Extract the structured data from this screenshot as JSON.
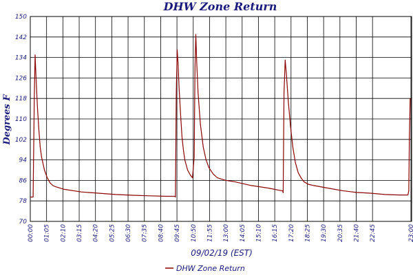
{
  "chart_data": {
    "type": "line",
    "title": "DHW Zone Return",
    "xlabel": "09/02/19 (EST)",
    "ylabel": "Degrees F",
    "ylim": [
      70,
      150
    ],
    "yticks": [
      "70",
      "78",
      "86",
      "94",
      "102",
      "110",
      "118",
      "126",
      "134",
      "142",
      "150"
    ],
    "xticks": [
      "00:00",
      "01:05",
      "02:10",
      "03:15",
      "04:20",
      "05:25",
      "06:30",
      "07:35",
      "08:40",
      "09:45",
      "10:50",
      "11:55",
      "13:00",
      "14:05",
      "15:10",
      "16:15",
      "17:20",
      "18:25",
      "19:30",
      "20:35",
      "21:40",
      "22:45",
      "23:00"
    ],
    "grid": true,
    "legend_position": "bottom-center",
    "series": [
      {
        "name": "DHW Zone Return",
        "color": "#8b0000",
        "points": [
          [
            0,
            79.5
          ],
          [
            10,
            79.5
          ],
          [
            14,
            118
          ],
          [
            17,
            135
          ],
          [
            20,
            127
          ],
          [
            25,
            115
          ],
          [
            30,
            106
          ],
          [
            35,
            99
          ],
          [
            40,
            95
          ],
          [
            50,
            90
          ],
          [
            60,
            87
          ],
          [
            70,
            85
          ],
          [
            80,
            84
          ],
          [
            90,
            83.5
          ],
          [
            120,
            82.5
          ],
          [
            180,
            81.5
          ],
          [
            240,
            81
          ],
          [
            300,
            80.5
          ],
          [
            360,
            80.2
          ],
          [
            420,
            80
          ],
          [
            480,
            79.8
          ],
          [
            510,
            79.8
          ],
          [
            512,
            79.5
          ],
          [
            515,
            120
          ],
          [
            518,
            137
          ],
          [
            521,
            132
          ],
          [
            525,
            122
          ],
          [
            530,
            112
          ],
          [
            535,
            103
          ],
          [
            540,
            98
          ],
          [
            545,
            94
          ],
          [
            555,
            90
          ],
          [
            565,
            88
          ],
          [
            572,
            87
          ],
          [
            578,
            95
          ],
          [
            581,
            130
          ],
          [
            584,
            143
          ],
          [
            587,
            132
          ],
          [
            592,
            120
          ],
          [
            600,
            108
          ],
          [
            610,
            99
          ],
          [
            620,
            94
          ],
          [
            630,
            91
          ],
          [
            645,
            88.5
          ],
          [
            660,
            87
          ],
          [
            690,
            86
          ],
          [
            720,
            85.5
          ],
          [
            780,
            84
          ],
          [
            840,
            83
          ],
          [
            885,
            82
          ],
          [
            890,
            82
          ],
          [
            892,
            81.2
          ],
          [
            895,
            120
          ],
          [
            899,
            133
          ],
          [
            903,
            128
          ],
          [
            910,
            117
          ],
          [
            918,
            107
          ],
          [
            926,
            99
          ],
          [
            935,
            93
          ],
          [
            945,
            89
          ],
          [
            955,
            87
          ],
          [
            965,
            85.5
          ],
          [
            980,
            84.5
          ],
          [
            1000,
            84
          ],
          [
            1050,
            83
          ],
          [
            1100,
            82
          ],
          [
            1150,
            81.3
          ],
          [
            1200,
            81
          ],
          [
            1250,
            80.5
          ],
          [
            1300,
            80.3
          ],
          [
            1332,
            80.3
          ],
          [
            1335,
            82
          ],
          [
            1337,
            102
          ],
          [
            1340,
            118
          ]
        ]
      }
    ]
  }
}
